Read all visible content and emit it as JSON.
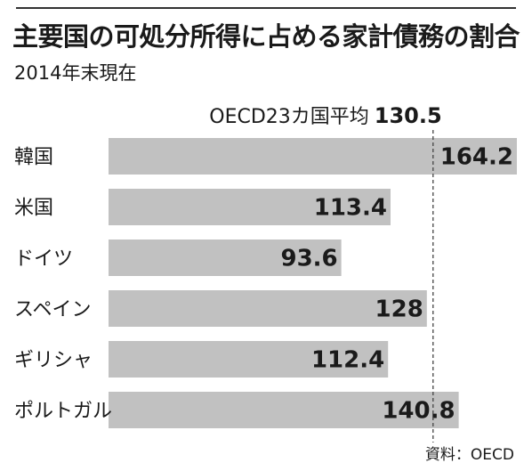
{
  "header": {
    "title": "主要国の可処分所得に占める家計債務の割合",
    "subtitle": "2014年末現在"
  },
  "source": "資料：OECD",
  "colors": {
    "bar": "#c1c1c1",
    "text": "#1a1a1a",
    "reference_line": "#444444"
  },
  "chart_data": {
    "type": "bar",
    "orientation": "horizontal",
    "title": "主要国の可処分所得に占める家計債務の割合",
    "subtitle": "2014年末現在",
    "categories": [
      "韓国",
      "米国",
      "ドイツ",
      "スペイン",
      "ギリシャ",
      "ポルトガル"
    ],
    "values": [
      164.2,
      113.4,
      93.6,
      128,
      112.4,
      140.8
    ],
    "value_labels": [
      "164.2",
      "113.4",
      "93.6",
      "128",
      "112.4",
      "140.8"
    ],
    "reference_line": {
      "label": "OECD23カ国平均",
      "value": 130.5,
      "value_label": "130.5"
    },
    "xlim": [
      0,
      164.2
    ],
    "grid": false,
    "legend": "none"
  }
}
